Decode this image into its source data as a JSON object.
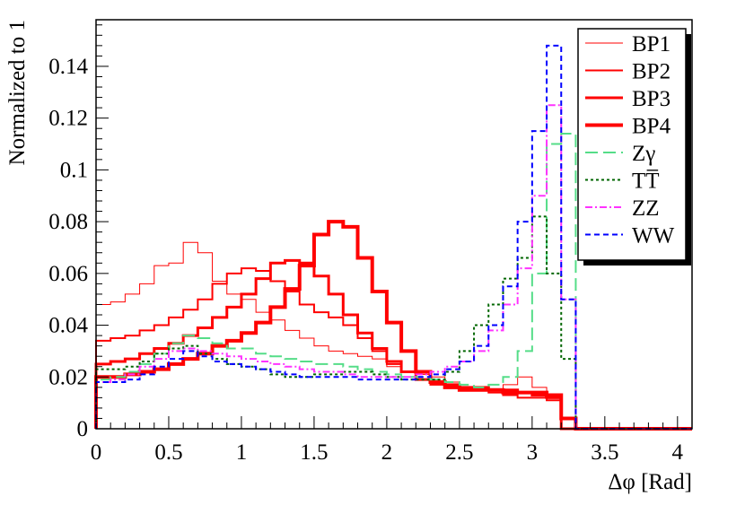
{
  "chart_data": {
    "type": "line",
    "style": "histogram-step",
    "xlabel": "Δφ [Rad]",
    "ylabel": "Normalized to 1",
    "xlim": [
      0,
      4.1
    ],
    "ylim": [
      0,
      0.158
    ],
    "x_ticks": [
      "0",
      "0.5",
      "1",
      "1.5",
      "2",
      "2.5",
      "3",
      "3.5",
      "4"
    ],
    "y_ticks": [
      "0",
      "0.02",
      "0.04",
      "0.06",
      "0.08",
      "0.1",
      "0.12",
      "0.14"
    ],
    "legend_position": "top-right",
    "bin_width": 0.1,
    "bin_edges_start": 0,
    "series": [
      {
        "name": "BP1",
        "color": "#ff0000",
        "width": 1,
        "dash": "solid",
        "values": [
          0.048,
          0.049,
          0.052,
          0.056,
          0.063,
          0.064,
          0.072,
          0.068,
          0.057,
          0.052,
          0.05,
          0.045,
          0.042,
          0.038,
          0.035,
          0.032,
          0.03,
          0.029,
          0.028,
          0.027,
          0.024,
          0.022,
          0.021,
          0.02,
          0.018,
          0.016,
          0.016,
          0.014,
          0.017,
          0.02,
          0.016,
          0.012,
          0,
          0,
          0,
          0,
          0,
          0,
          0,
          0,
          0
        ]
      },
      {
        "name": "BP2",
        "color": "#ff0000",
        "width": 2,
        "dash": "solid",
        "values": [
          0.034,
          0.035,
          0.036,
          0.038,
          0.04,
          0.043,
          0.046,
          0.05,
          0.056,
          0.06,
          0.062,
          0.061,
          0.057,
          0.053,
          0.048,
          0.045,
          0.043,
          0.04,
          0.035,
          0.03,
          0.025,
          0.022,
          0.019,
          0.017,
          0.016,
          0.015,
          0.015,
          0.014,
          0.013,
          0.012,
          0.012,
          0.011,
          0,
          0,
          0,
          0,
          0,
          0,
          0,
          0,
          0
        ]
      },
      {
        "name": "BP3",
        "color": "#ff0000",
        "width": 3,
        "dash": "solid",
        "values": [
          0.025,
          0.026,
          0.027,
          0.029,
          0.031,
          0.033,
          0.036,
          0.039,
          0.043,
          0.047,
          0.052,
          0.058,
          0.064,
          0.065,
          0.064,
          0.059,
          0.052,
          0.044,
          0.037,
          0.031,
          0.026,
          0.022,
          0.019,
          0.018,
          0.017,
          0.016,
          0.016,
          0.015,
          0.015,
          0.014,
          0.013,
          0.012,
          0,
          0,
          0,
          0,
          0,
          0,
          0,
          0,
          0
        ]
      },
      {
        "name": "BP4",
        "color": "#ff0000",
        "width": 4,
        "dash": "solid",
        "values": [
          0.02,
          0.02,
          0.021,
          0.022,
          0.023,
          0.025,
          0.027,
          0.029,
          0.032,
          0.034,
          0.037,
          0.041,
          0.047,
          0.054,
          0.063,
          0.075,
          0.08,
          0.078,
          0.066,
          0.053,
          0.041,
          0.03,
          0.022,
          0.018,
          0.016,
          0.015,
          0.015,
          0.015,
          0.014,
          0.014,
          0.014,
          0.013,
          0.004,
          0,
          0,
          0,
          0,
          0,
          0,
          0,
          0
        ]
      },
      {
        "name": "Zγ",
        "color": "#55dd88",
        "width": 2,
        "dash": "14,6",
        "values": [
          0.019,
          0.02,
          0.022,
          0.025,
          0.029,
          0.033,
          0.036,
          0.035,
          0.033,
          0.031,
          0.031,
          0.029,
          0.028,
          0.027,
          0.026,
          0.025,
          0.025,
          0.024,
          0.023,
          0.022,
          0.021,
          0.02,
          0.02,
          0.019,
          0.018,
          0.017,
          0.016,
          0.017,
          0.02,
          0.03,
          0.06,
          0.11,
          0.114,
          0,
          0,
          0,
          0,
          0,
          0,
          0,
          0
        ]
      },
      {
        "name": "TT̅",
        "color": "#006600",
        "width": 2,
        "dash": "3,3",
        "values": [
          0.023,
          0.023,
          0.024,
          0.026,
          0.029,
          0.031,
          0.032,
          0.029,
          0.027,
          0.025,
          0.024,
          0.023,
          0.021,
          0.02,
          0.02,
          0.021,
          0.021,
          0.022,
          0.022,
          0.021,
          0.02,
          0.019,
          0.019,
          0.019,
          0.022,
          0.03,
          0.04,
          0.048,
          0.058,
          0.066,
          0.082,
          0.06,
          0.027,
          0,
          0,
          0,
          0,
          0,
          0,
          0,
          0
        ]
      },
      {
        "name": "ZZ",
        "color": "#ff33ff",
        "width": 2,
        "dash": "8,3,2,3",
        "values": [
          0.018,
          0.019,
          0.021,
          0.024,
          0.027,
          0.03,
          0.031,
          0.03,
          0.029,
          0.028,
          0.027,
          0.026,
          0.025,
          0.024,
          0.023,
          0.022,
          0.022,
          0.021,
          0.02,
          0.02,
          0.02,
          0.02,
          0.021,
          0.022,
          0.024,
          0.026,
          0.03,
          0.038,
          0.048,
          0.062,
          0.09,
          0.125,
          0.05,
          0,
          0,
          0,
          0,
          0,
          0,
          0,
          0
        ]
      },
      {
        "name": "WW",
        "color": "#0000ff",
        "width": 2,
        "dash": "6,4",
        "values": [
          0.018,
          0.018,
          0.019,
          0.021,
          0.024,
          0.027,
          0.03,
          0.028,
          0.026,
          0.025,
          0.024,
          0.023,
          0.022,
          0.021,
          0.02,
          0.02,
          0.02,
          0.02,
          0.019,
          0.019,
          0.019,
          0.019,
          0.02,
          0.021,
          0.023,
          0.026,
          0.032,
          0.04,
          0.055,
          0.08,
          0.115,
          0.148,
          0.05,
          0,
          0,
          0,
          0,
          0,
          0,
          0,
          0
        ]
      }
    ]
  }
}
